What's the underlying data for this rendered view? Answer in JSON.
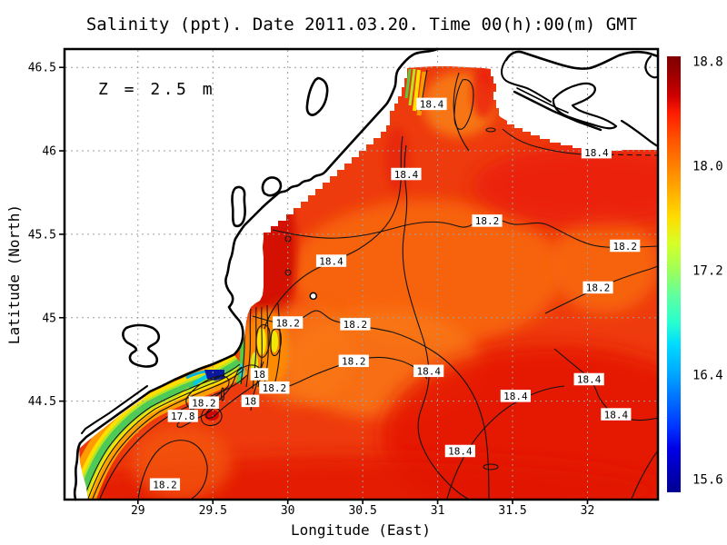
{
  "chart_data": {
    "type": "heatmap",
    "title": "Salinity (ppt). Date 2011.03.20. Time 00(h):00(m) GMT",
    "variable": "Salinity",
    "units": "ppt",
    "date": "2011.03.20",
    "time_gmt": "00(h):00(m)",
    "depth_annotation": "Z = 2.5 m",
    "xlabel": "Longitude (East)",
    "ylabel": "Latitude (North)",
    "xlim": [
      28.51,
      32.47
    ],
    "ylim": [
      43.91,
      46.61
    ],
    "x_ticks": [
      29,
      29.5,
      30,
      30.5,
      31,
      31.5,
      32
    ],
    "y_ticks": [
      44.5,
      45,
      45.5,
      46,
      46.5
    ],
    "grid": true,
    "sea_base_color": "#ee3b0d",
    "contour_interval": 0.2,
    "colorbar": {
      "position": "right",
      "colormap": "jet",
      "value_range": [
        15.5,
        18.84
      ],
      "tick_labels": [
        "18.8",
        "18.0",
        "17.2",
        "16.4",
        "15.6"
      ],
      "tick_values": [
        18.8,
        18.0,
        17.2,
        16.4,
        15.6
      ],
      "stops": [
        {
          "pos": 0.0,
          "color": "#7f0000"
        },
        {
          "pos": 0.04,
          "color": "#9b0000"
        },
        {
          "pos": 0.09,
          "color": "#cd0000"
        },
        {
          "pos": 0.13,
          "color": "#ff1c00"
        },
        {
          "pos": 0.19,
          "color": "#ff5200"
        },
        {
          "pos": 0.25,
          "color": "#ff7f00"
        },
        {
          "pos": 0.31,
          "color": "#ffae00"
        },
        {
          "pos": 0.37,
          "color": "#ffdd00"
        },
        {
          "pos": 0.43,
          "color": "#d6ff29"
        },
        {
          "pos": 0.49,
          "color": "#9fff58"
        },
        {
          "pos": 0.55,
          "color": "#5fffa0"
        },
        {
          "pos": 0.61,
          "color": "#28ffcf"
        },
        {
          "pos": 0.66,
          "color": "#00dcff"
        },
        {
          "pos": 0.73,
          "color": "#00a5ff"
        },
        {
          "pos": 0.79,
          "color": "#006cff"
        },
        {
          "pos": 0.85,
          "color": "#0034ff"
        },
        {
          "pos": 0.9,
          "color": "#0000e6"
        },
        {
          "pos": 0.96,
          "color": "#0000b2"
        },
        {
          "pos": 1.0,
          "color": "#00008f"
        }
      ]
    },
    "contour_labels": [
      {
        "value": "18.4",
        "lon": 30.96,
        "lat": 46.28
      },
      {
        "value": "18.4",
        "lon": 30.79,
        "lat": 45.86
      },
      {
        "value": "18.4",
        "lon": 32.06,
        "lat": 45.99
      },
      {
        "value": "18.2",
        "lon": 31.33,
        "lat": 45.58
      },
      {
        "value": "18.2",
        "lon": 32.25,
        "lat": 45.43
      },
      {
        "value": "18.4",
        "lon": 30.29,
        "lat": 45.34
      },
      {
        "value": "18.2",
        "lon": 32.07,
        "lat": 45.18
      },
      {
        "value": "18.2",
        "lon": 30.0,
        "lat": 44.97
      },
      {
        "value": "18.2",
        "lon": 30.45,
        "lat": 44.96
      },
      {
        "value": "18.2",
        "lon": 30.44,
        "lat": 44.74
      },
      {
        "value": "18.4",
        "lon": 30.94,
        "lat": 44.68
      },
      {
        "value": "18",
        "lon": 29.81,
        "lat": 44.66
      },
      {
        "value": "18.2",
        "lon": 29.91,
        "lat": 44.58
      },
      {
        "value": "18",
        "lon": 29.75,
        "lat": 44.5
      },
      {
        "value": "18.2",
        "lon": 29.44,
        "lat": 44.49
      },
      {
        "value": "17.8",
        "lon": 29.3,
        "lat": 44.41
      },
      {
        "value": "18.2",
        "lon": 29.18,
        "lat": 44.0
      },
      {
        "value": "18.4",
        "lon": 31.52,
        "lat": 44.53
      },
      {
        "value": "18.4",
        "lon": 32.01,
        "lat": 44.63
      },
      {
        "value": "18.4",
        "lon": 32.19,
        "lat": 44.42
      },
      {
        "value": "18.4",
        "lon": 31.15,
        "lat": 44.2
      }
    ],
    "station_marker": {
      "lon": 30.17,
      "lat": 45.13
    }
  }
}
